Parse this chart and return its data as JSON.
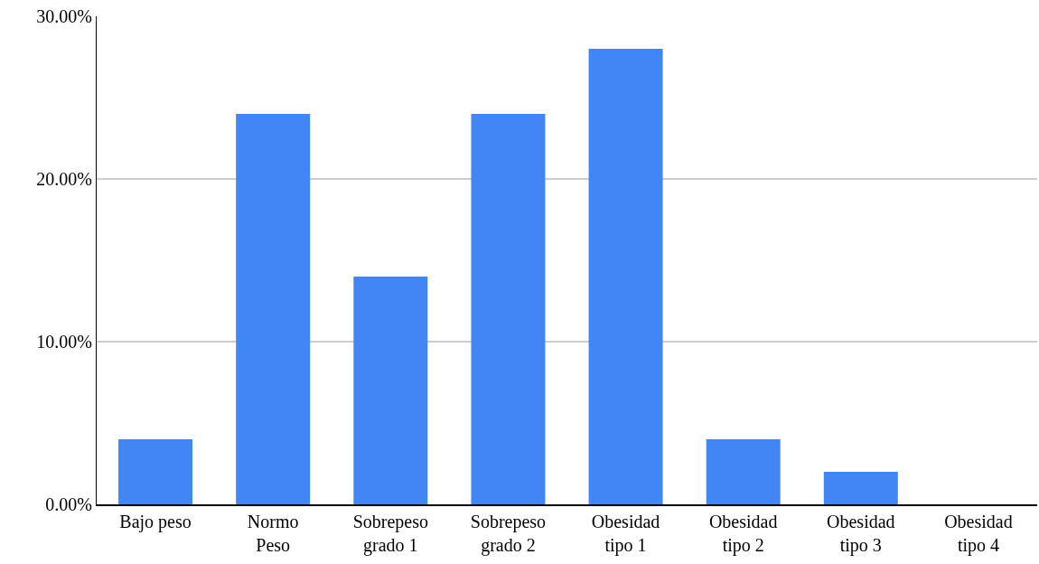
{
  "chart_data": {
    "type": "bar",
    "categories": [
      "Bajo peso",
      "Normo Peso",
      "Sobrepeso grado 1",
      "Sobrepeso grado 2",
      "Obesidad tipo 1",
      "Obesidad tipo 2",
      "Obesidad tipo 3",
      "Obesidad tipo 4"
    ],
    "values": [
      4,
      24,
      14,
      24,
      28,
      4,
      2,
      0
    ],
    "color": "#4285f4",
    "ylim": [
      0,
      30
    ],
    "yticks": [
      {
        "value": 0,
        "label": "0.00%"
      },
      {
        "value": 10,
        "label": "10.00%"
      },
      {
        "value": 20,
        "label": "20.00%"
      },
      {
        "value": 30,
        "label": "30.00%"
      }
    ],
    "grid": "y"
  }
}
